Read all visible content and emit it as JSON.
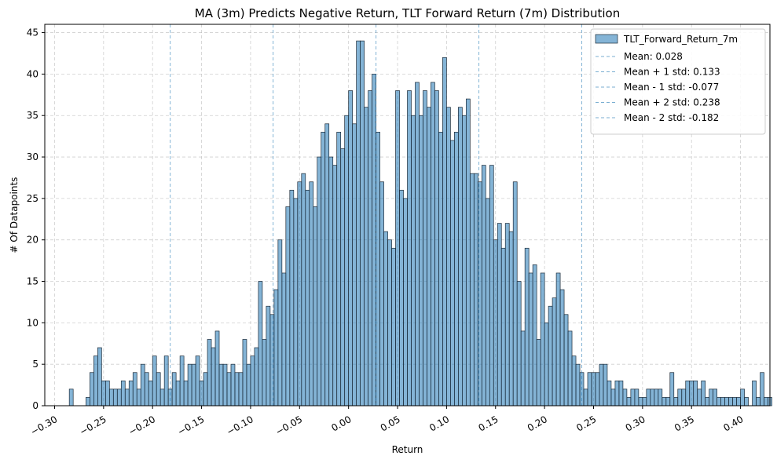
{
  "chart_data": {
    "type": "bar",
    "title": "MA (3m) Predicts Negative Return, TLT Forward Return (7m) Distribution",
    "xlabel": "Return",
    "ylabel": "# Of Datapoints",
    "xlim": [
      -0.31,
      0.43
    ],
    "ylim": [
      0,
      46
    ],
    "grid": true,
    "legend_position": "top-right",
    "bar_color": "#1f77b4",
    "line_color": "#1f77b4",
    "bin_width": 0.004,
    "xticks": [
      -0.3,
      -0.25,
      -0.2,
      -0.15,
      -0.1,
      -0.05,
      0.0,
      0.05,
      0.1,
      0.15,
      0.2,
      0.25,
      0.3,
      0.35,
      0.4
    ],
    "xtick_labels": [
      "−0.30",
      "−0.25",
      "−0.20",
      "−0.15",
      "−0.10",
      "−0.05",
      "0.00",
      "0.05",
      "0.10",
      "0.15",
      "0.20",
      "0.25",
      "0.30",
      "0.35",
      "0.40"
    ],
    "yticks": [
      0,
      5,
      10,
      15,
      20,
      25,
      30,
      35,
      40,
      45
    ],
    "series": [
      {
        "name": "TLT_Forward_Return_7m",
        "bins": [
          [
            -0.283,
            2
          ],
          [
            -0.266,
            1
          ],
          [
            -0.262,
            4
          ],
          [
            -0.258,
            6
          ],
          [
            -0.254,
            7
          ],
          [
            -0.25,
            3
          ],
          [
            -0.246,
            3
          ],
          [
            -0.242,
            2
          ],
          [
            -0.238,
            2
          ],
          [
            -0.234,
            2
          ],
          [
            -0.23,
            3
          ],
          [
            -0.226,
            2
          ],
          [
            -0.222,
            3
          ],
          [
            -0.218,
            4
          ],
          [
            -0.214,
            2
          ],
          [
            -0.21,
            5
          ],
          [
            -0.206,
            4
          ],
          [
            -0.202,
            3
          ],
          [
            -0.198,
            6
          ],
          [
            -0.194,
            4
          ],
          [
            -0.19,
            2
          ],
          [
            -0.186,
            6
          ],
          [
            -0.182,
            2
          ],
          [
            -0.178,
            4
          ],
          [
            -0.174,
            3
          ],
          [
            -0.17,
            6
          ],
          [
            -0.166,
            3
          ],
          [
            -0.162,
            5
          ],
          [
            -0.158,
            5
          ],
          [
            -0.154,
            6
          ],
          [
            -0.15,
            3
          ],
          [
            -0.146,
            4
          ],
          [
            -0.142,
            8
          ],
          [
            -0.138,
            7
          ],
          [
            -0.134,
            9
          ],
          [
            -0.13,
            5
          ],
          [
            -0.126,
            5
          ],
          [
            -0.122,
            4
          ],
          [
            -0.118,
            5
          ],
          [
            -0.114,
            4
          ],
          [
            -0.11,
            4
          ],
          [
            -0.106,
            8
          ],
          [
            -0.102,
            5
          ],
          [
            -0.098,
            6
          ],
          [
            -0.094,
            7
          ],
          [
            -0.09,
            15
          ],
          [
            -0.086,
            8
          ],
          [
            -0.082,
            12
          ],
          [
            -0.078,
            11
          ],
          [
            -0.074,
            14
          ],
          [
            -0.07,
            20
          ],
          [
            -0.066,
            16
          ],
          [
            -0.062,
            24
          ],
          [
            -0.058,
            26
          ],
          [
            -0.054,
            25
          ],
          [
            -0.05,
            27
          ],
          [
            -0.046,
            28
          ],
          [
            -0.042,
            26
          ],
          [
            -0.038,
            27
          ],
          [
            -0.034,
            24
          ],
          [
            -0.03,
            30
          ],
          [
            -0.026,
            33
          ],
          [
            -0.022,
            34
          ],
          [
            -0.018,
            30
          ],
          [
            -0.014,
            29
          ],
          [
            -0.01,
            33
          ],
          [
            -0.006,
            31
          ],
          [
            -0.002,
            35
          ],
          [
            0.002,
            38
          ],
          [
            0.006,
            34
          ],
          [
            0.01,
            44
          ],
          [
            0.014,
            44
          ],
          [
            0.018,
            36
          ],
          [
            0.022,
            38
          ],
          [
            0.026,
            40
          ],
          [
            0.03,
            33
          ],
          [
            0.034,
            27
          ],
          [
            0.038,
            21
          ],
          [
            0.042,
            20
          ],
          [
            0.046,
            19
          ],
          [
            0.05,
            38
          ],
          [
            0.054,
            26
          ],
          [
            0.058,
            25
          ],
          [
            0.062,
            38
          ],
          [
            0.066,
            35
          ],
          [
            0.07,
            39
          ],
          [
            0.074,
            35
          ],
          [
            0.078,
            38
          ],
          [
            0.082,
            36
          ],
          [
            0.086,
            39
          ],
          [
            0.09,
            38
          ],
          [
            0.094,
            33
          ],
          [
            0.098,
            42
          ],
          [
            0.102,
            36
          ],
          [
            0.106,
            32
          ],
          [
            0.11,
            33
          ],
          [
            0.114,
            36
          ],
          [
            0.118,
            35
          ],
          [
            0.122,
            37
          ],
          [
            0.126,
            28
          ],
          [
            0.13,
            28
          ],
          [
            0.134,
            27
          ],
          [
            0.138,
            29
          ],
          [
            0.142,
            25
          ],
          [
            0.146,
            29
          ],
          [
            0.15,
            20
          ],
          [
            0.154,
            22
          ],
          [
            0.158,
            19
          ],
          [
            0.162,
            22
          ],
          [
            0.166,
            21
          ],
          [
            0.17,
            27
          ],
          [
            0.174,
            15
          ],
          [
            0.178,
            9
          ],
          [
            0.182,
            19
          ],
          [
            0.186,
            16
          ],
          [
            0.19,
            17
          ],
          [
            0.194,
            8
          ],
          [
            0.198,
            16
          ],
          [
            0.202,
            10
          ],
          [
            0.206,
            12
          ],
          [
            0.21,
            13
          ],
          [
            0.214,
            16
          ],
          [
            0.218,
            14
          ],
          [
            0.222,
            11
          ],
          [
            0.226,
            9
          ],
          [
            0.23,
            6
          ],
          [
            0.234,
            5
          ],
          [
            0.238,
            4
          ],
          [
            0.242,
            2
          ],
          [
            0.246,
            4
          ],
          [
            0.25,
            4
          ],
          [
            0.254,
            4
          ],
          [
            0.258,
            5
          ],
          [
            0.262,
            5
          ],
          [
            0.266,
            3
          ],
          [
            0.27,
            2
          ],
          [
            0.274,
            3
          ],
          [
            0.278,
            3
          ],
          [
            0.282,
            2
          ],
          [
            0.286,
            1
          ],
          [
            0.29,
            2
          ],
          [
            0.294,
            2
          ],
          [
            0.298,
            1
          ],
          [
            0.302,
            1
          ],
          [
            0.306,
            2
          ],
          [
            0.31,
            2
          ],
          [
            0.314,
            2
          ],
          [
            0.318,
            2
          ],
          [
            0.322,
            1
          ],
          [
            0.326,
            1
          ],
          [
            0.33,
            4
          ],
          [
            0.334,
            1
          ],
          [
            0.338,
            2
          ],
          [
            0.342,
            2
          ],
          [
            0.346,
            3
          ],
          [
            0.35,
            3
          ],
          [
            0.354,
            3
          ],
          [
            0.358,
            2
          ],
          [
            0.362,
            3
          ],
          [
            0.366,
            1
          ],
          [
            0.37,
            2
          ],
          [
            0.374,
            2
          ],
          [
            0.378,
            1
          ],
          [
            0.382,
            1
          ],
          [
            0.386,
            1
          ],
          [
            0.39,
            1
          ],
          [
            0.394,
            1
          ],
          [
            0.398,
            1
          ],
          [
            0.402,
            2
          ],
          [
            0.406,
            1
          ],
          [
            0.414,
            3
          ],
          [
            0.418,
            1
          ],
          [
            0.422,
            4
          ],
          [
            0.426,
            1
          ],
          [
            0.43,
            1
          ]
        ]
      }
    ],
    "reference_lines": [
      {
        "name": "Mean: 0.028",
        "x": 0.028
      },
      {
        "name": "Mean + 1 std: 0.133",
        "x": 0.133
      },
      {
        "name": "Mean - 1 std: -0.077",
        "x": -0.077
      },
      {
        "name": "Mean + 2 std: 0.238",
        "x": 0.238
      },
      {
        "name": "Mean - 2 std: -0.182",
        "x": -0.182
      }
    ]
  }
}
